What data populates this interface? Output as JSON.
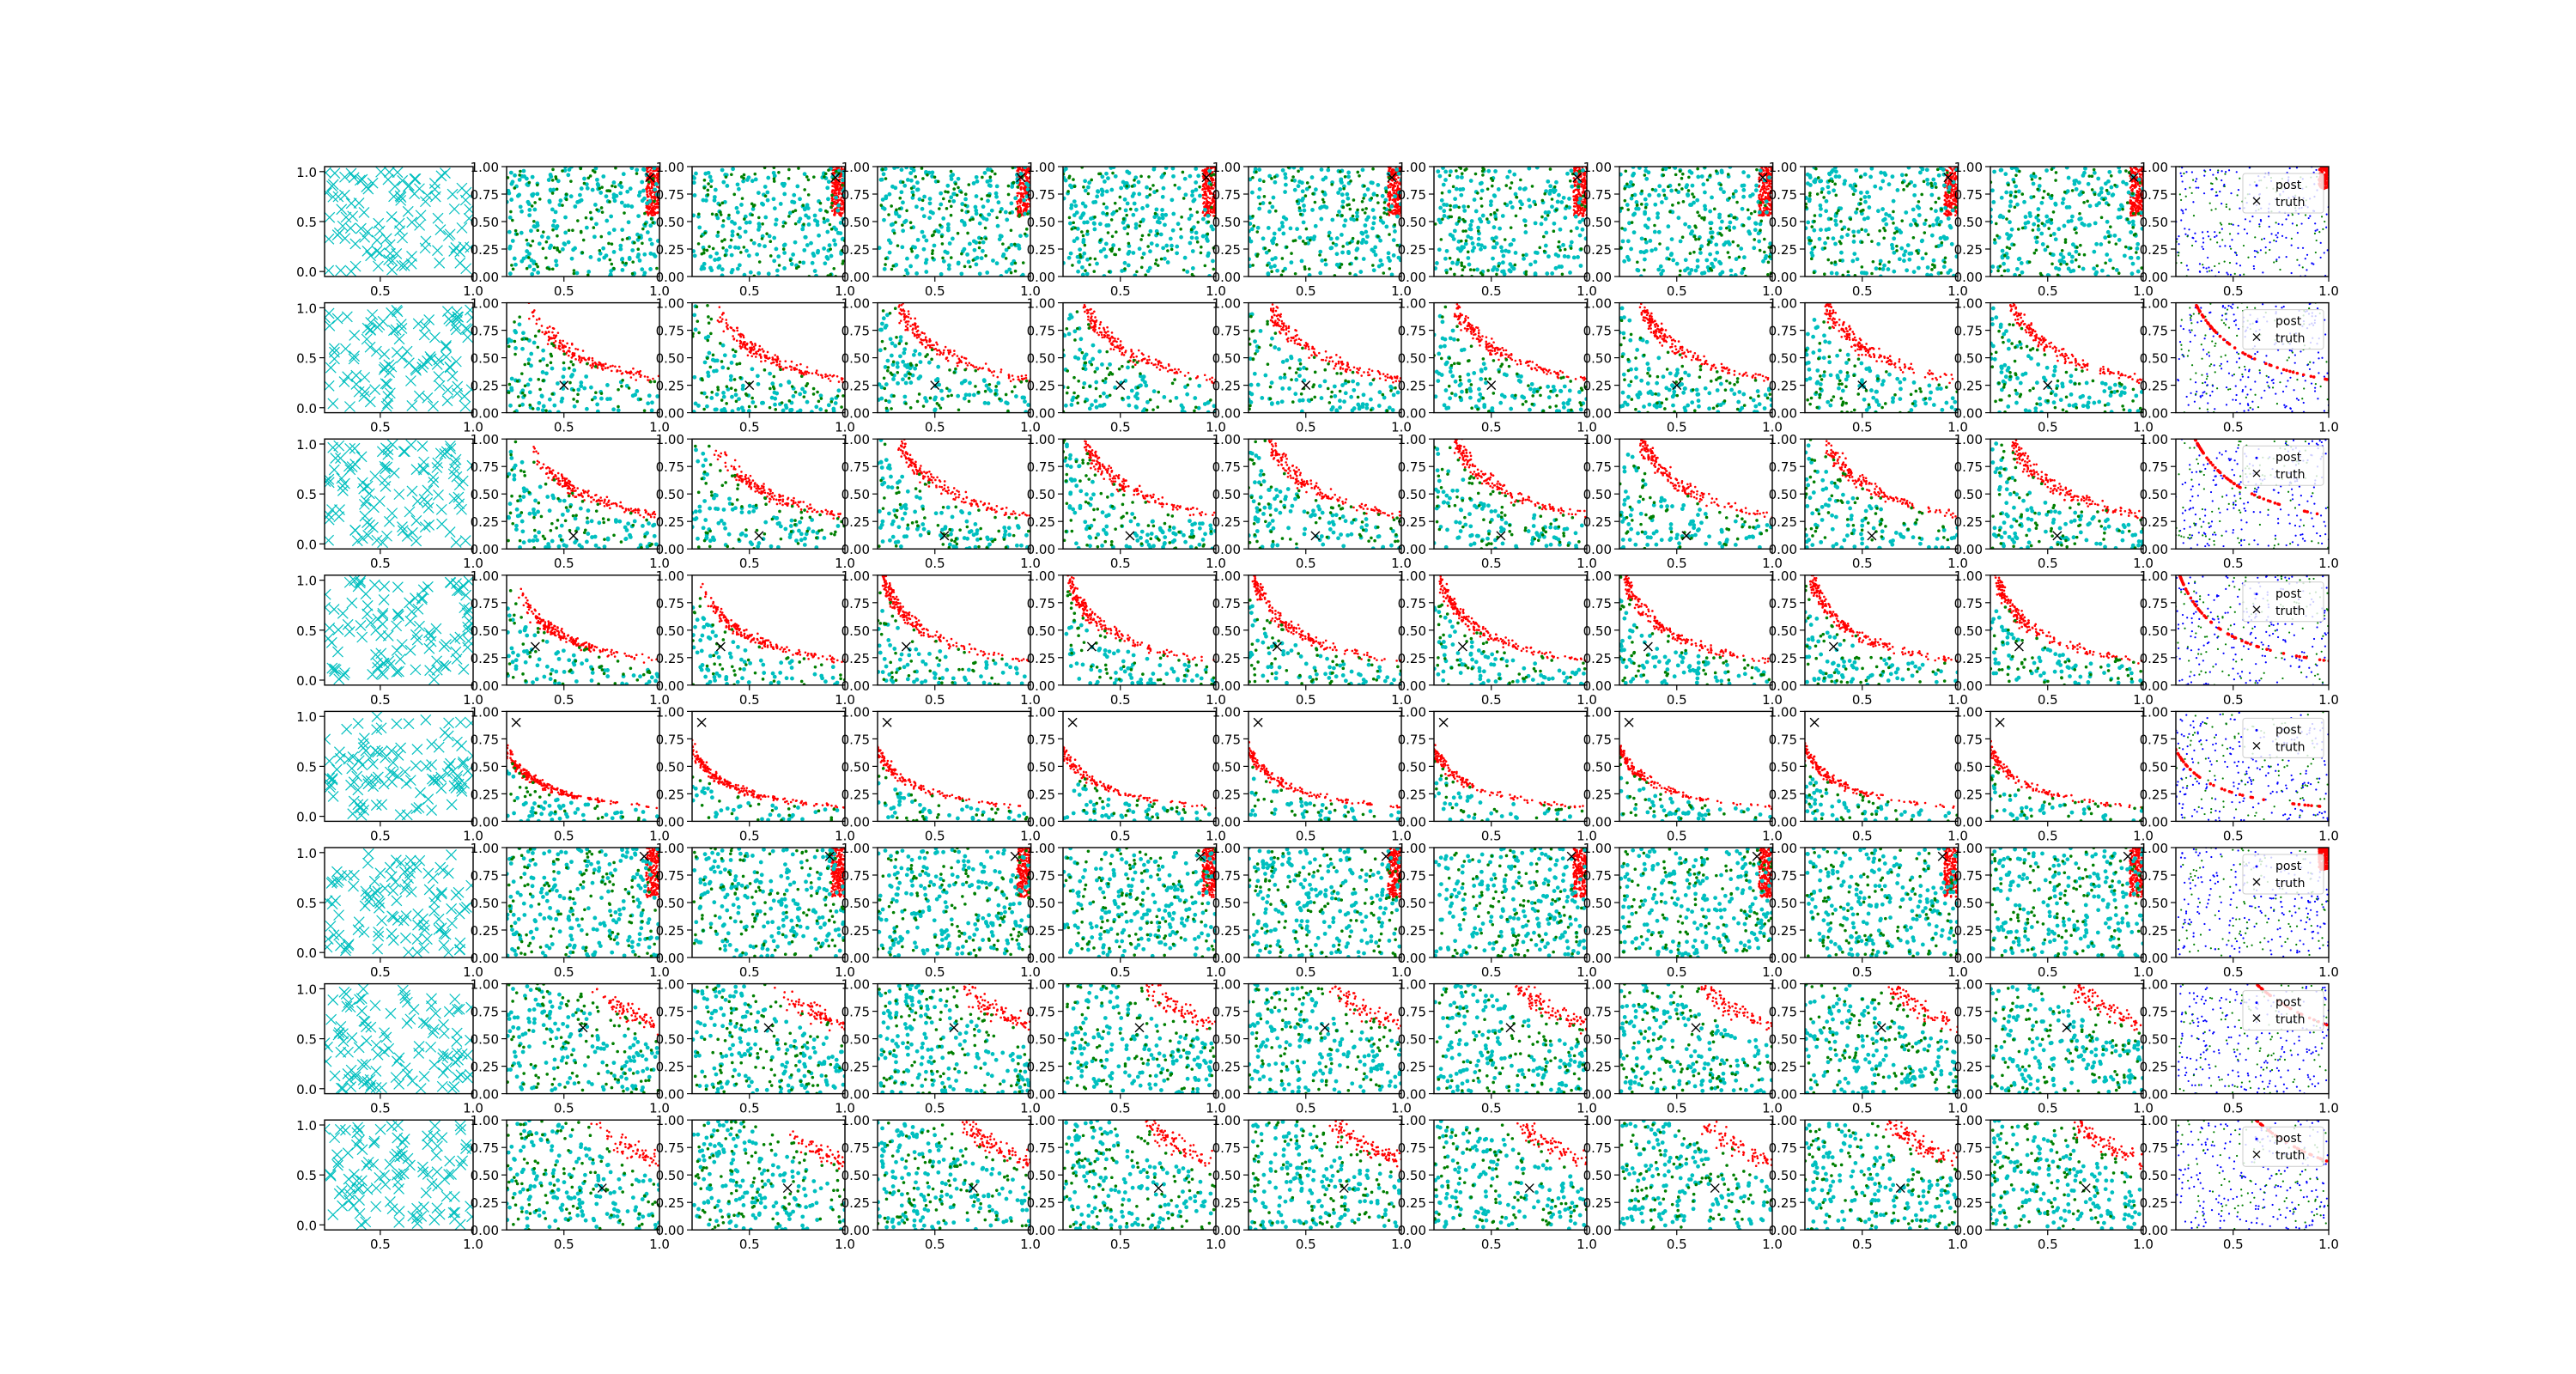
{
  "figure": {
    "rows": 8,
    "cols": 11
  },
  "colors": {
    "cyan": "#00bfbf",
    "green": "#007f00",
    "red": "#ff0000",
    "blue": "#0000ff",
    "black": "#000000",
    "axis": "#000000",
    "background": "#ffffff"
  },
  "legend": {
    "entries": [
      "post",
      "truth"
    ],
    "placement": "top-right"
  },
  "chart_data": {
    "type": "scatter",
    "grid": false,
    "first_column": {
      "xlim": [
        0.2,
        1.0
      ],
      "ylim": [
        -0.05,
        1.05
      ],
      "xticks": [
        "0.5",
        "1.0"
      ],
      "yticks": [
        "0.0",
        "0.5",
        "1.0"
      ]
    },
    "other_columns": {
      "xlim": [
        0.2,
        1.0
      ],
      "ylim": [
        0.0,
        1.0
      ],
      "xticks": [
        "0.5",
        "1.0"
      ],
      "yticks": [
        "0.00",
        "0.25",
        "0.50",
        "0.75",
        "1.00"
      ]
    },
    "rows": [
      {
        "truth": [
          0.95,
          0.9
        ],
        "curve_k": 0.95
      },
      {
        "truth": [
          0.5,
          0.25
        ],
        "curve_k": 0.3
      },
      {
        "truth": [
          0.55,
          0.12
        ],
        "curve_k": 0.3
      },
      {
        "truth": [
          0.35,
          0.35
        ],
        "curve_k": 0.22
      },
      {
        "truth": [
          0.25,
          0.9
        ],
        "curve_k": 0.13
      },
      {
        "truth": [
          0.92,
          0.92
        ],
        "curve_k": 0.95
      },
      {
        "truth": [
          0.6,
          0.6
        ],
        "curve_k": 0.62
      },
      {
        "truth": [
          0.7,
          0.38
        ],
        "curve_k": 0.62
      }
    ]
  }
}
